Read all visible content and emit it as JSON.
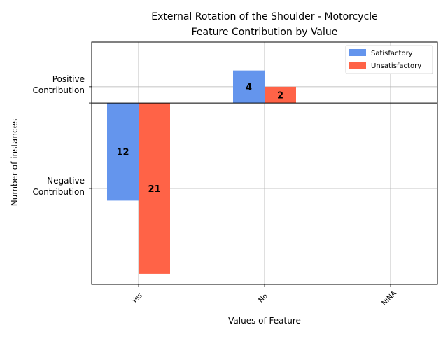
{
  "chart_data": {
    "type": "bar",
    "title": [
      "External Rotation of the Shoulder - Motorcycle",
      "Feature Contribution by Value"
    ],
    "xlabel": "Values of Feature",
    "ylabel": "Number of instances",
    "categories": [
      "Yes",
      "No",
      "NINA"
    ],
    "series": [
      {
        "name": "Satisfactory",
        "color": "#6495ed",
        "values": [
          -12,
          4,
          0
        ]
      },
      {
        "name": "Unsatisfactory",
        "color": "#ff6347",
        "values": [
          -21,
          2,
          0
        ]
      }
    ],
    "data_labels": [
      [
        "12",
        "4",
        ""
      ],
      [
        "21",
        "2",
        ""
      ]
    ],
    "ytick_labels": [
      {
        "value": 2,
        "text": [
          "Positive",
          "Contribution"
        ]
      },
      {
        "value": -10.5,
        "text": [
          "Negative",
          "Contribution"
        ]
      }
    ],
    "ylim": [
      -22.3,
      7.5
    ],
    "x_tick_rotation": 45,
    "grid": true,
    "legend_position": "top-right"
  }
}
